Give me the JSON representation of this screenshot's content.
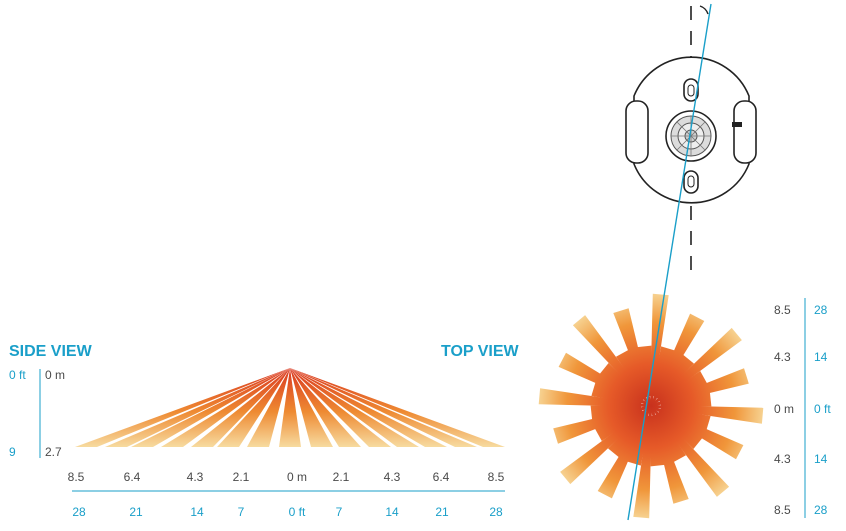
{
  "side_view": {
    "title": "SIDE VIEW",
    "height_ft_top": "0 ft",
    "height_m_top": "0 m",
    "height_ft_bottom": "9",
    "height_m_bottom": "2.7",
    "meters": [
      "8.5",
      "6.4",
      "4.3",
      "2.1",
      "0 m",
      "2.1",
      "4.3",
      "6.4",
      "8.5"
    ],
    "feet": [
      "28",
      "21",
      "14",
      "7",
      "0 ft",
      "7",
      "14",
      "21",
      "28"
    ]
  },
  "top_view": {
    "title": "TOP VIEW",
    "meters": [
      "8.5",
      "4.3",
      "0 m",
      "4.3",
      "8.5"
    ],
    "feet": [
      "28",
      "14",
      "0 ft",
      "14",
      "28"
    ]
  },
  "colors": {
    "accent": "#1a9fc9",
    "beam_hot": "#d9361f",
    "beam_warm": "#ee8a32",
    "beam_light": "#f7dba0"
  },
  "icons": [
    "sensor-device-icon"
  ]
}
